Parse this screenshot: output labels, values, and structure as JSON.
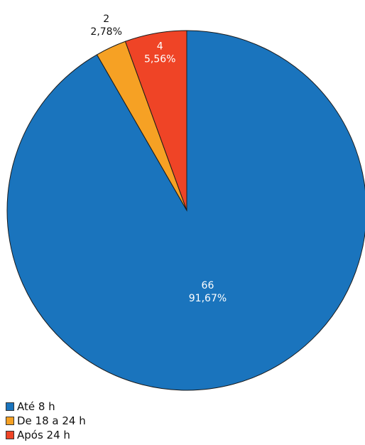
{
  "chart_data": {
    "type": "pie",
    "title": "",
    "slices": [
      {
        "label": "Até 8 h",
        "value": 66,
        "percent": "91,67%",
        "color": "#1a74bd",
        "label_color": "#ffffff"
      },
      {
        "label": "De 18 a 24 h",
        "value": 2,
        "percent": "2,78%",
        "color": "#f6a124",
        "label_color": "#111111"
      },
      {
        "label": "Após 24 h",
        "value": 4,
        "percent": "5,56%",
        "color": "#ef4426",
        "label_color": "#ffffff"
      }
    ],
    "legend_position": "bottom-left"
  }
}
